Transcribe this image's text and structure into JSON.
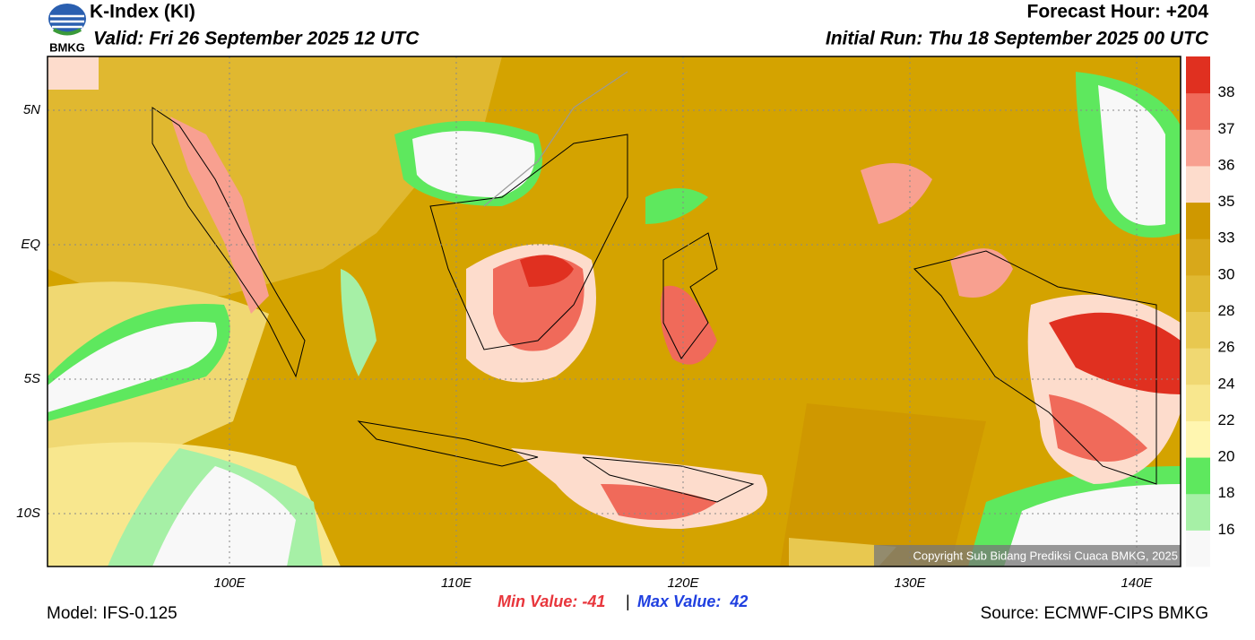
{
  "header": {
    "logo_text": "BMKG",
    "title": "K-Index (KI)",
    "valid": "Valid: Fri 26 September 2025 12 UTC",
    "forecast_hour": "Forecast Hour: +204",
    "initial_run": "Initial Run: Thu 18 September 2025 00 UTC"
  },
  "map": {
    "lat_labels": [
      "5N",
      "EQ",
      "5S",
      "10S"
    ],
    "lon_labels": [
      "100E",
      "110E",
      "120E",
      "130E",
      "140E"
    ],
    "copyright": "Copyright Sub Bidang Prediksi Cuaca BMKG, 2025"
  },
  "colorbar": {
    "levels": [
      16,
      18,
      20,
      22,
      24,
      26,
      28,
      30,
      33,
      35,
      36,
      37,
      38
    ],
    "colors": [
      "#f8f8f8",
      "#a6f0a6",
      "#5ee85e",
      "#fff6b0",
      "#f8e78e",
      "#f0d872",
      "#e8c850",
      "#e0b932",
      "#d8a81a",
      "#cf9800",
      "#fddccc",
      "#f8a090",
      "#f06a5a",
      "#e03020"
    ]
  },
  "footer": {
    "min_value": "Min Value: -41",
    "separator": "|",
    "max_value": "Max Value:  42",
    "model": "Model: IFS-0.125",
    "source": "Source: ECMWF-CIPS BMKG"
  }
}
